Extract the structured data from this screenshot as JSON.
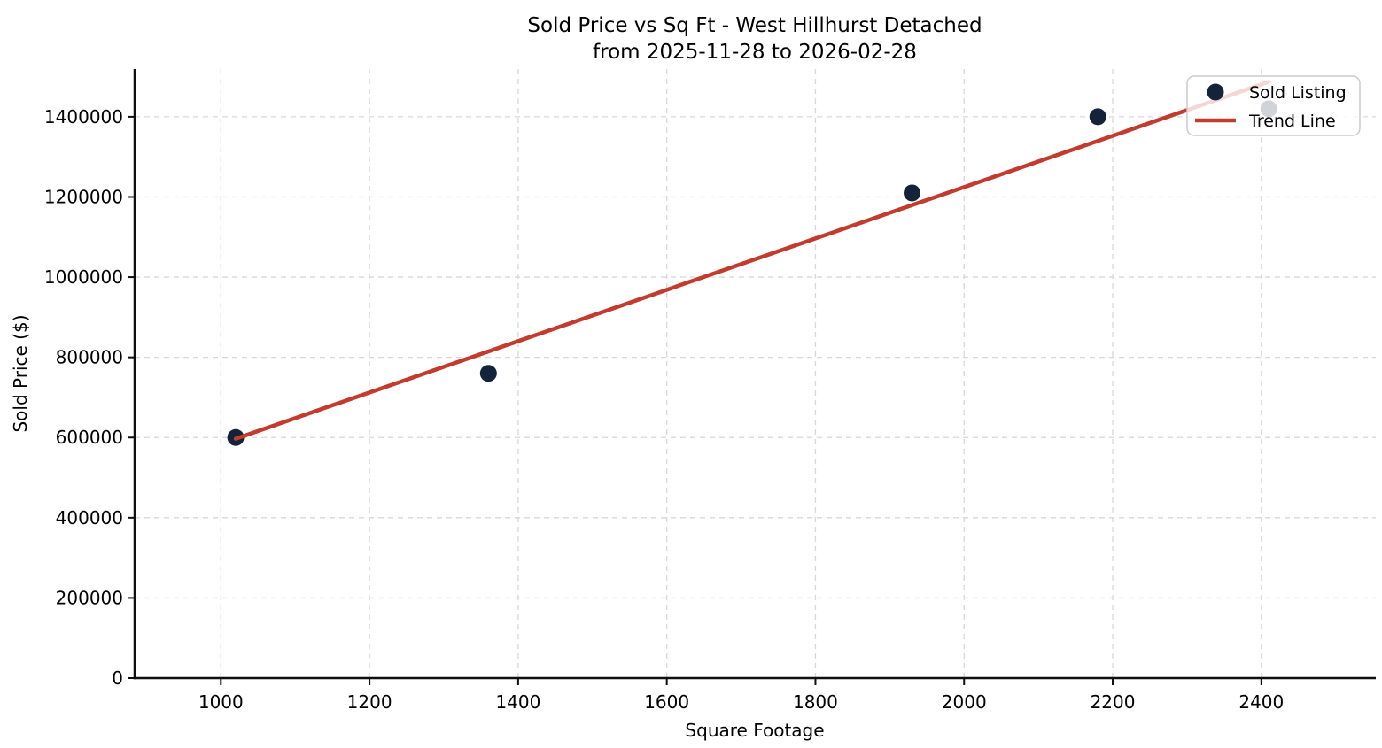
{
  "chart_data": {
    "type": "scatter",
    "title_lines": [
      "Sold Price vs Sq Ft - West Hillhurst Detached",
      "from 2025-11-28 to 2026-02-28"
    ],
    "xlabel": "Square Footage",
    "ylabel": "Sold Price ($)",
    "xlim": [
      884,
      2554
    ],
    "ylim": [
      0,
      1519000
    ],
    "x_ticks": [
      1000,
      1200,
      1400,
      1600,
      1800,
      2000,
      2200,
      2400
    ],
    "y_ticks": [
      0,
      200000,
      400000,
      600000,
      800000,
      1000000,
      1200000,
      1400000
    ],
    "grid": true,
    "grid_style": "dashed",
    "legend_position": "upper right",
    "series": [
      {
        "name": "Sold Listing",
        "type": "scatter",
        "color": "#142339",
        "points": [
          [
            1020,
            600000
          ],
          [
            1360,
            760000
          ],
          [
            1930,
            1210000
          ],
          [
            2180,
            1400000
          ],
          [
            2410,
            1420000
          ]
        ]
      },
      {
        "name": "Trend Line",
        "type": "line",
        "color": "#c23b2d",
        "points": [
          [
            1020,
            597000
          ],
          [
            2410,
            1487000
          ]
        ]
      }
    ],
    "legend": {
      "entries": [
        {
          "label": "Sold Listing",
          "swatch": "circle"
        },
        {
          "label": "Trend Line",
          "swatch": "line"
        }
      ]
    },
    "colors": {
      "point": "#142339",
      "trend": "#c23b2d",
      "grid": "#d8d8d8",
      "text": "#000000",
      "spine": "#0f0f0f",
      "legend_border": "#cccccc"
    }
  }
}
